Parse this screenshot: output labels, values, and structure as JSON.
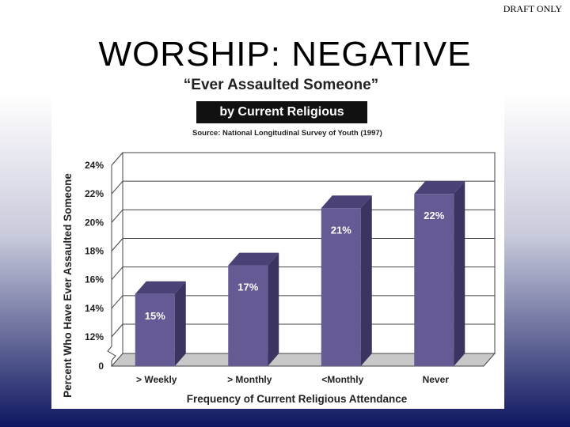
{
  "watermark": "DRAFT ONLY",
  "slide_title": "WORSHIP: NEGATIVE",
  "chart_data": {
    "type": "bar",
    "title": "“Ever Assaulted Someone”",
    "subtitle": "by Current Religious Attendance",
    "source": "Source: National Longitudinal Survey of Youth (1997)",
    "xlabel": "Frequency of Current Religious Attendance",
    "ylabel": "Percent Who Have Ever Assaulted Someone",
    "categories": [
      "> Weekly",
      "> Monthly",
      "<Monthly",
      "Never"
    ],
    "values": [
      15,
      17,
      21,
      22
    ],
    "data_labels": [
      "15%",
      "17%",
      "21%",
      "22%"
    ],
    "y_ticks": [
      {
        "value": 24,
        "label": "24%"
      },
      {
        "value": 22,
        "label": "22%"
      },
      {
        "value": 20,
        "label": "20%"
      },
      {
        "value": 18,
        "label": "18%"
      },
      {
        "value": 16,
        "label": "16%"
      },
      {
        "value": 14,
        "label": "14%"
      },
      {
        "value": 12,
        "label": "12%"
      },
      {
        "value": 0,
        "label": "0"
      }
    ],
    "ylim": [
      0,
      24
    ],
    "axis_break": true,
    "grid": true,
    "bar_color": "#665a94",
    "bar_side_color": "#3b3360",
    "bar_top_color": "#4a4176"
  }
}
